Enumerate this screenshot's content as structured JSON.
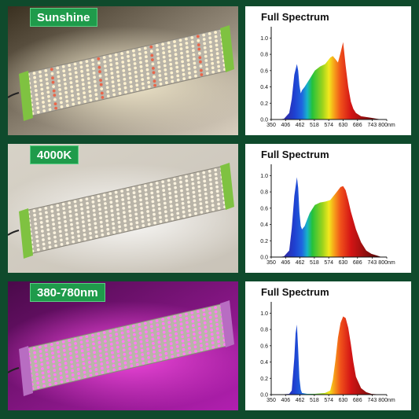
{
  "panels": [
    {
      "tag": "Sunshine",
      "spectrum_title": "Full Spectrum",
      "photo": {
        "bg_from": "#3a3020",
        "bg_to": "#d9cfbf",
        "led": "#fff2cf",
        "accent_led": "#e8664a",
        "glow": "#fff6d8",
        "end_cap": "#7fc241",
        "accent": true
      }
    },
    {
      "tag": "4000K",
      "spectrum_title": "Full Spectrum",
      "photo": {
        "bg_from": "#d7d2c7",
        "bg_to": "#c9c3b8",
        "led": "#fbf3df",
        "accent_led": "#fbf3df",
        "glow": "#ffffff",
        "end_cap": "#7fc241",
        "accent": false
      }
    },
    {
      "tag": "380-780nm",
      "spectrum_title": "Full Spectrum",
      "photo": {
        "bg_from": "#4a0a4a",
        "bg_to": "#b21fb0",
        "led": "#ff7cf2",
        "accent_led": "#ff7cf2",
        "glow": "#ff4fe8",
        "end_cap": "#b86dc2",
        "accent": false
      }
    }
  ],
  "chart_data": [
    {
      "type": "area",
      "title": "Full Spectrum",
      "x_unit": "nm",
      "x_ticks": [
        "350",
        "406",
        "462",
        "518",
        "574",
        "630",
        "686",
        "743",
        "800nm"
      ],
      "y_ticks": [
        "0.0",
        "0.2",
        "0.4",
        "0.6",
        "0.8",
        "1.0"
      ],
      "xlim": [
        350,
        800
      ],
      "ylim": [
        0,
        1.1
      ],
      "x": [
        380,
        400,
        420,
        430,
        440,
        450,
        455,
        460,
        465,
        470,
        480,
        490,
        500,
        520,
        540,
        560,
        580,
        590,
        600,
        610,
        620,
        630,
        640,
        650,
        660,
        670,
        680,
        700,
        720,
        740,
        760,
        780
      ],
      "y": [
        0,
        0.01,
        0.08,
        0.25,
        0.55,
        0.68,
        0.6,
        0.42,
        0.32,
        0.36,
        0.4,
        0.45,
        0.5,
        0.6,
        0.65,
        0.68,
        0.76,
        0.78,
        0.74,
        0.7,
        0.82,
        0.95,
        0.66,
        0.4,
        0.22,
        0.13,
        0.08,
        0.04,
        0.03,
        0.02,
        0.01,
        0
      ]
    },
    {
      "type": "area",
      "title": "Full Spectrum",
      "x_unit": "nm",
      "x_ticks": [
        "350",
        "406",
        "462",
        "518",
        "574",
        "630",
        "686",
        "743",
        "800nm"
      ],
      "y_ticks": [
        "0.0",
        "0.2",
        "0.4",
        "0.6",
        "0.8",
        "1.0"
      ],
      "xlim": [
        350,
        800
      ],
      "ylim": [
        0,
        1.1
      ],
      "x": [
        380,
        400,
        420,
        430,
        440,
        450,
        455,
        460,
        465,
        470,
        480,
        490,
        500,
        520,
        540,
        560,
        580,
        600,
        620,
        630,
        640,
        650,
        660,
        680,
        700,
        720,
        740,
        760,
        780
      ],
      "y": [
        0,
        0.01,
        0.08,
        0.35,
        0.75,
        0.98,
        0.85,
        0.55,
        0.38,
        0.34,
        0.38,
        0.46,
        0.54,
        0.64,
        0.67,
        0.68,
        0.7,
        0.78,
        0.86,
        0.87,
        0.82,
        0.7,
        0.56,
        0.34,
        0.18,
        0.08,
        0.04,
        0.02,
        0
      ]
    },
    {
      "type": "area",
      "title": "Full Spectrum",
      "x_unit": "nm",
      "x_ticks": [
        "350",
        "406",
        "462",
        "518",
        "574",
        "630",
        "686",
        "743",
        "800nm"
      ],
      "y_ticks": [
        "0.0",
        "0.2",
        "0.4",
        "0.6",
        "0.8",
        "1.0"
      ],
      "xlim": [
        350,
        800
      ],
      "ylim": [
        0,
        1.1
      ],
      "x": [
        380,
        420,
        430,
        440,
        445,
        450,
        455,
        460,
        465,
        470,
        490,
        520,
        560,
        580,
        590,
        600,
        610,
        620,
        630,
        640,
        650,
        660,
        670,
        680,
        700,
        720,
        740,
        780
      ],
      "y": [
        0,
        0.01,
        0.05,
        0.45,
        0.75,
        0.86,
        0.55,
        0.2,
        0.06,
        0.02,
        0.01,
        0.01,
        0.02,
        0.05,
        0.18,
        0.42,
        0.7,
        0.88,
        0.96,
        0.94,
        0.82,
        0.62,
        0.4,
        0.22,
        0.08,
        0.03,
        0.01,
        0
      ]
    }
  ]
}
